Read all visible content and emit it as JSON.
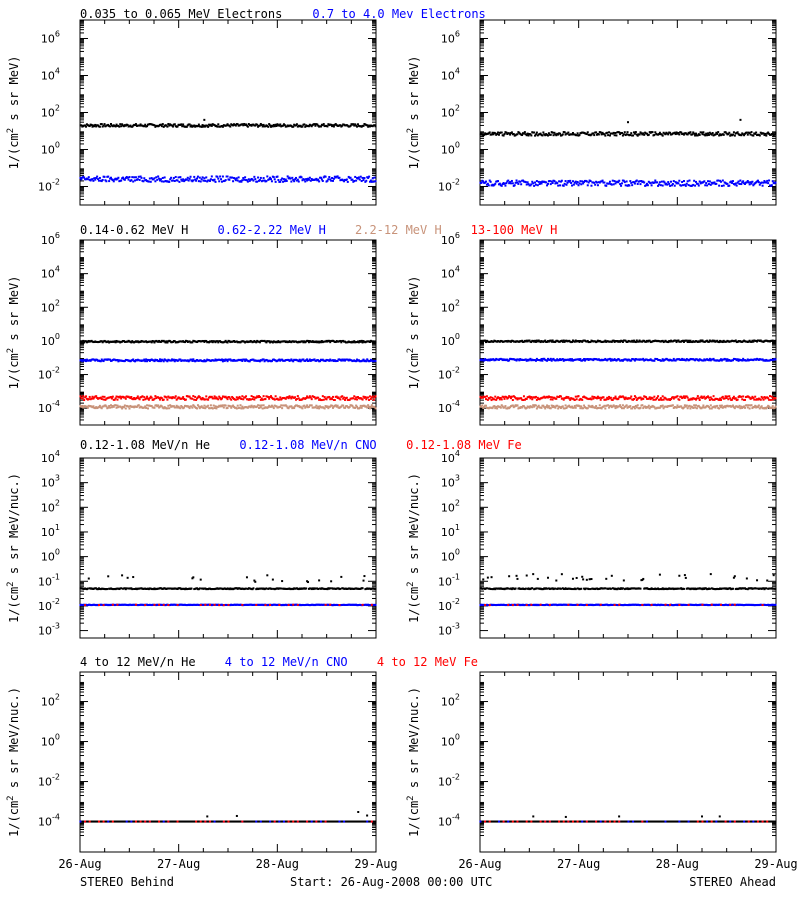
{
  "colors": {
    "black": "#000000",
    "blue": "#0000ff",
    "tan": "#c8937a",
    "red": "#ff0000"
  },
  "footer": {
    "left": "STEREO Behind",
    "center": "Start: 26-Aug-2008 00:00 UTC",
    "right": "STEREO Ahead"
  },
  "x_ticks": [
    "26-Aug",
    "27-Aug",
    "28-Aug",
    "29-Aug"
  ],
  "rows": [
    {
      "legend": [
        {
          "text": "0.035 to 0.065 MeV Electrons",
          "color": "#000000"
        },
        {
          "text": "0.7 to 4.0 Mev Electrons",
          "color": "#0000ff"
        }
      ],
      "ylabel_main": "1/(cm",
      "ylabel_sup": "2",
      "ylabel_rest": " s sr MeV)"
    },
    {
      "legend": [
        {
          "text": "0.14-0.62 MeV H",
          "color": "#000000"
        },
        {
          "text": "0.62-2.22 MeV H",
          "color": "#0000ff"
        },
        {
          "text": "2.2-12 MeV H",
          "color": "#c8937a"
        },
        {
          "text": "13-100 MeV H",
          "color": "#ff0000"
        }
      ],
      "ylabel_main": "1/(cm",
      "ylabel_sup": "2",
      "ylabel_rest": " s sr MeV)"
    },
    {
      "legend": [
        {
          "text": "0.12-1.08 MeV/n He",
          "color": "#000000"
        },
        {
          "text": "0.12-1.08 MeV/n CNO",
          "color": "#0000ff"
        },
        {
          "text": "0.12-1.08 MeV Fe",
          "color": "#ff0000"
        }
      ],
      "ylabel_main": "1/(cm",
      "ylabel_sup": "2",
      "ylabel_rest": " s sr MeV/nuc.)"
    },
    {
      "legend": [
        {
          "text": "4 to 12 MeV/n He",
          "color": "#000000"
        },
        {
          "text": "4 to 12 MeV/n CNO",
          "color": "#0000ff"
        },
        {
          "text": "4 to 12 MeV Fe",
          "color": "#ff0000"
        }
      ],
      "ylabel_main": "1/(cm",
      "ylabel_sup": "2",
      "ylabel_rest": " s sr MeV/nuc.)"
    }
  ],
  "chart_data": [
    {
      "type": "scatter",
      "spacecraft": "STEREO Behind",
      "log_y": true,
      "x": [
        "26-Aug",
        "27-Aug",
        "28-Aug",
        "29-Aug"
      ],
      "ylim": [
        0.001,
        10000000
      ],
      "ytick_exps": [
        -2,
        0,
        2,
        4,
        6
      ],
      "series": [
        {
          "name": "0.035 to 0.065 MeV Electrons",
          "color": "#000000",
          "level": 20,
          "spread": 0.08,
          "outliers": [
            [
              0.42,
              40
            ]
          ]
        },
        {
          "name": "0.7 to 4.0 Mev Electrons",
          "color": "#0000ff",
          "level": 0.025,
          "spread": 0.15
        }
      ]
    },
    {
      "type": "scatter",
      "spacecraft": "STEREO Ahead",
      "log_y": true,
      "x": [
        "26-Aug",
        "27-Aug",
        "28-Aug",
        "29-Aug"
      ],
      "ylim": [
        0.001,
        10000000
      ],
      "ytick_exps": [
        -2,
        0,
        2,
        4,
        6
      ],
      "series": [
        {
          "name": "0.035 to 0.065 MeV Electrons",
          "color": "#000000",
          "level": 7,
          "spread": 0.1,
          "outliers": [
            [
              0.5,
              30
            ],
            [
              0.88,
              40
            ]
          ]
        },
        {
          "name": "0.7 to 4.0 Mev Electrons",
          "color": "#0000ff",
          "level": 0.015,
          "spread": 0.15
        }
      ]
    },
    {
      "type": "scatter",
      "spacecraft": "STEREO Behind",
      "log_y": true,
      "x": [
        "26-Aug",
        "27-Aug",
        "28-Aug",
        "29-Aug"
      ],
      "ylim": [
        1e-05,
        1000000
      ],
      "ytick_exps": [
        -4,
        -2,
        0,
        2,
        4,
        6
      ],
      "series": [
        {
          "name": "0.14-0.62 MeV H",
          "color": "#000000",
          "level": 0.9,
          "spread": 0.05
        },
        {
          "name": "0.62-2.22 MeV H",
          "color": "#0000ff",
          "level": 0.07,
          "spread": 0.06
        },
        {
          "name": "2.2-12 MeV H",
          "color": "#c8937a",
          "level": 0.00012,
          "spread": 0.1
        },
        {
          "name": "13-100 MeV H",
          "color": "#ff0000",
          "level": 0.0004,
          "spread": 0.12
        }
      ]
    },
    {
      "type": "scatter",
      "spacecraft": "STEREO Ahead",
      "log_y": true,
      "x": [
        "26-Aug",
        "27-Aug",
        "28-Aug",
        "29-Aug"
      ],
      "ylim": [
        1e-05,
        1000000
      ],
      "ytick_exps": [
        -4,
        -2,
        0,
        2,
        4,
        6
      ],
      "series": [
        {
          "name": "0.14-0.62 MeV H",
          "color": "#000000",
          "level": 0.95,
          "spread": 0.05
        },
        {
          "name": "0.62-2.22 MeV H",
          "color": "#0000ff",
          "level": 0.075,
          "spread": 0.06
        },
        {
          "name": "2.2-12 MeV H",
          "color": "#c8937a",
          "level": 0.00012,
          "spread": 0.1
        },
        {
          "name": "13-100 MeV H",
          "color": "#ff0000",
          "level": 0.0004,
          "spread": 0.12
        }
      ]
    },
    {
      "type": "scatter",
      "spacecraft": "STEREO Behind",
      "log_y": true,
      "x": [
        "26-Aug",
        "27-Aug",
        "28-Aug",
        "29-Aug"
      ],
      "ylim": [
        0.0005,
        10000
      ],
      "ytick_exps": [
        -3,
        -2,
        -1,
        0,
        1,
        2,
        3,
        4
      ],
      "series": [
        {
          "name": "0.12-1.08 MeV/n He",
          "color": "#000000",
          "level": 0.05,
          "spread": 0.02,
          "upper": 0.13,
          "upper_frac": 0.18
        },
        {
          "name": "0.12-1.08 MeV/n CNO",
          "color": "#0000ff",
          "level": 0.011,
          "spread": 0.01
        },
        {
          "name": "0.12-1.08 MeV Fe",
          "color": "#ff0000",
          "level": 0.011,
          "spread": 0.01,
          "sparse": true
        }
      ]
    },
    {
      "type": "scatter",
      "spacecraft": "STEREO Ahead",
      "log_y": true,
      "x": [
        "26-Aug",
        "27-Aug",
        "28-Aug",
        "29-Aug"
      ],
      "ylim": [
        0.0005,
        10000
      ],
      "ytick_exps": [
        -3,
        -2,
        -1,
        0,
        1,
        2,
        3,
        4
      ],
      "series": [
        {
          "name": "0.12-1.08 MeV/n He",
          "color": "#000000",
          "level": 0.05,
          "spread": 0.02,
          "upper": 0.15,
          "upper_frac": 0.35
        },
        {
          "name": "0.12-1.08 MeV/n CNO",
          "color": "#0000ff",
          "level": 0.011,
          "spread": 0.01
        },
        {
          "name": "0.12-1.08 MeV Fe",
          "color": "#ff0000",
          "level": 0.011,
          "spread": 0.01,
          "sparse": true
        }
      ]
    },
    {
      "type": "scatter",
      "spacecraft": "STEREO Behind",
      "log_y": true,
      "x": [
        "26-Aug",
        "27-Aug",
        "28-Aug",
        "29-Aug"
      ],
      "ylim": [
        3e-06,
        3000
      ],
      "ytick_exps": [
        -4,
        -2,
        0,
        2
      ],
      "series": [
        {
          "name": "4 to 12 MeV/n He",
          "color": "#000000",
          "level": 0.0001,
          "spread": 0.0,
          "outliers": [
            [
              0.43,
              0.00018
            ],
            [
              0.53,
              0.00019
            ],
            [
              0.94,
              0.0003
            ],
            [
              0.97,
              0.0002
            ]
          ]
        },
        {
          "name": "4 to 12 MeV/n CNO",
          "color": "#0000ff",
          "level": 0.0001,
          "spread": 0.0,
          "sparse": true
        },
        {
          "name": "4 to 12 MeV Fe",
          "color": "#ff0000",
          "level": 0.0001,
          "spread": 0.0,
          "sparse": true
        }
      ]
    },
    {
      "type": "scatter",
      "spacecraft": "STEREO Ahead",
      "log_y": true,
      "x": [
        "26-Aug",
        "27-Aug",
        "28-Aug",
        "29-Aug"
      ],
      "ylim": [
        3e-06,
        3000
      ],
      "ytick_exps": [
        -4,
        -2,
        0,
        2
      ],
      "series": [
        {
          "name": "4 to 12 MeV/n He",
          "color": "#000000",
          "level": 0.0001,
          "spread": 0.0,
          "outliers": [
            [
              0.18,
              0.00018
            ],
            [
              0.29,
              0.00017
            ],
            [
              0.47,
              0.00018
            ],
            [
              0.75,
              0.00018
            ],
            [
              0.81,
              0.00018
            ]
          ]
        },
        {
          "name": "4 to 12 MeV/n CNO",
          "color": "#0000ff",
          "level": 0.0001,
          "spread": 0.0,
          "sparse": true
        },
        {
          "name": "4 to 12 MeV Fe",
          "color": "#ff0000",
          "level": 0.0001,
          "spread": 0.0,
          "sparse": true
        }
      ]
    }
  ]
}
